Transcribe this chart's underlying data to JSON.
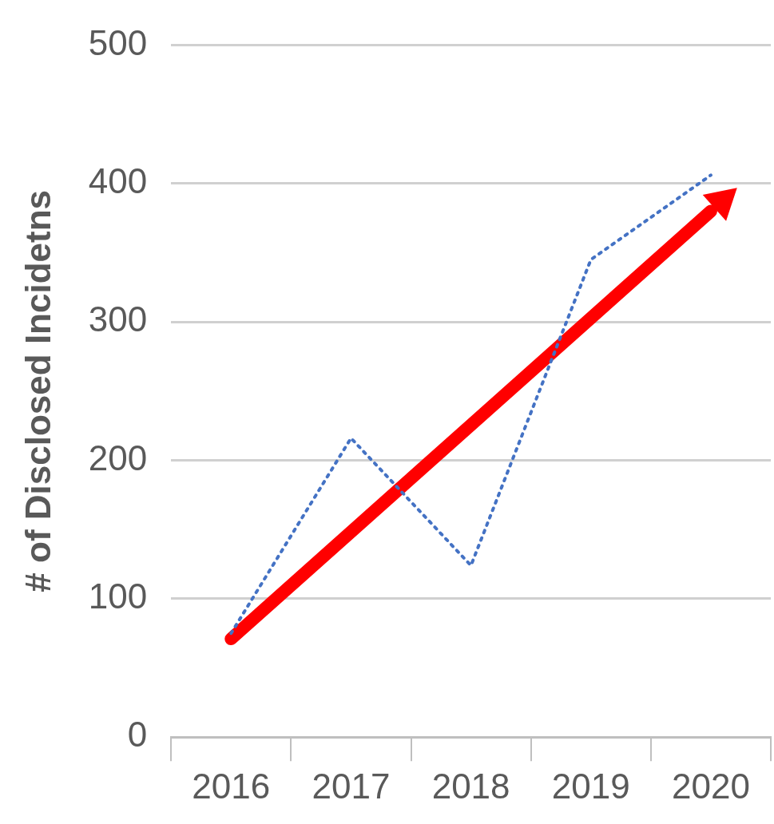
{
  "chart_data": {
    "type": "line",
    "ylabel": "# of Disclosed Incidetns",
    "categories": [
      "2016",
      "2017",
      "2018",
      "2019",
      "2020"
    ],
    "series": [
      {
        "color": "#4472c4",
        "values": [
          75,
          216,
          124,
          345,
          406
        ]
      },
      {
        "type": "line",
        "color": "#ff0000",
        "line_style": "solid",
        "values": [
          71,
          null,
          null,
          null,
          380
        ]
      }
    ],
    "ylim": [
      0,
      500
    ],
    "yticks": [
      0,
      100,
      200,
      300,
      400,
      500
    ],
    "grid": "y",
    "marker": "none",
    "line_style": "dotted"
  }
}
